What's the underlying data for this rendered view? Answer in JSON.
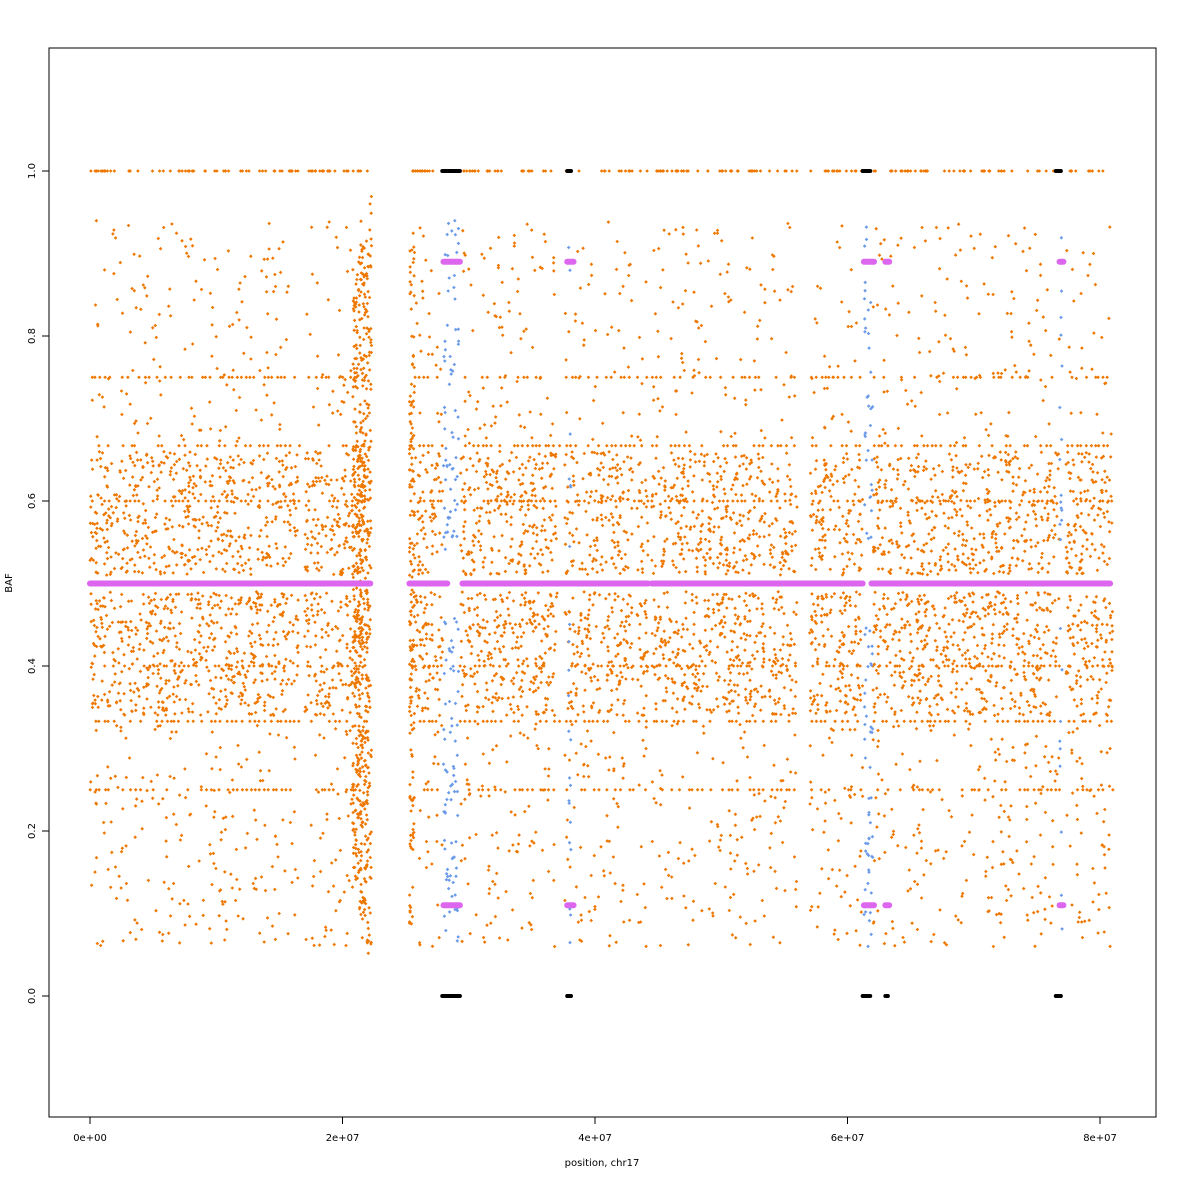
{
  "chart_data": {
    "type": "scatter",
    "title": "",
    "xlabel": "position, chr17",
    "ylabel": "BAF",
    "xlim": [
      -3000000,
      83000000
    ],
    "ylim": [
      -0.15,
      1.15
    ],
    "x_ticks": [
      {
        "value": 0,
        "label": "0e+00"
      },
      {
        "value": 20000000,
        "label": "2e+07"
      },
      {
        "value": 40000000,
        "label": "4e+07"
      },
      {
        "value": 60000000,
        "label": "6e+07"
      },
      {
        "value": 80000000,
        "label": "8e+07"
      }
    ],
    "y_ticks": [
      {
        "value": 0.0,
        "label": "0.0"
      },
      {
        "value": 0.2,
        "label": "0.2"
      },
      {
        "value": 0.4,
        "label": "0.4"
      },
      {
        "value": 0.6,
        "label": "0.6"
      },
      {
        "value": 0.8,
        "label": "0.8"
      },
      {
        "value": 1.0,
        "label": "1.0"
      }
    ],
    "grid": false,
    "legend": "none",
    "colors": {
      "snp_baf": "#ee7700",
      "segment_baf": "#dd66ee",
      "loh_region_baf": "#6a9ae8",
      "homozygous": "#000000"
    },
    "series": [
      {
        "kind": "segment_mean",
        "color_key": "segment_baf",
        "segments": [
          {
            "x0": 0,
            "x1": 22200000,
            "y": 0.5
          },
          {
            "x0": 25300000,
            "x1": 28300000,
            "y": 0.5
          },
          {
            "x0": 29500000,
            "x1": 44200000,
            "y": 0.5
          },
          {
            "x0": 44500000,
            "x1": 61200000,
            "y": 0.5
          },
          {
            "x0": 61900000,
            "x1": 80800000,
            "y": 0.5
          },
          {
            "x0": 28000000,
            "x1": 29300000,
            "y": 0.89
          },
          {
            "x0": 28000000,
            "x1": 29300000,
            "y": 0.11
          },
          {
            "x0": 37800000,
            "x1": 38300000,
            "y": 0.89
          },
          {
            "x0": 37800000,
            "x1": 38300000,
            "y": 0.11
          },
          {
            "x0": 61300000,
            "x1": 62100000,
            "y": 0.89
          },
          {
            "x0": 61300000,
            "x1": 62100000,
            "y": 0.11
          },
          {
            "x0": 63000000,
            "x1": 63300000,
            "y": 0.89
          },
          {
            "x0": 63000000,
            "x1": 63300000,
            "y": 0.11
          },
          {
            "x0": 76800000,
            "x1": 77100000,
            "y": 0.89
          },
          {
            "x0": 76800000,
            "x1": 77100000,
            "y": 0.11
          }
        ]
      },
      {
        "kind": "homozygous",
        "color_key": "homozygous",
        "segments": [
          {
            "x0": 27900000,
            "x1": 29300000,
            "y": 1.0
          },
          {
            "x0": 27900000,
            "x1": 29300000,
            "y": 0.0
          },
          {
            "x0": 37800000,
            "x1": 38100000,
            "y": 1.0
          },
          {
            "x0": 37800000,
            "x1": 38100000,
            "y": 0.0
          },
          {
            "x0": 61200000,
            "x1": 61800000,
            "y": 1.0
          },
          {
            "x0": 61200000,
            "x1": 61800000,
            "y": 0.0
          },
          {
            "x0": 63000000,
            "x1": 63200000,
            "y": 0.0
          },
          {
            "x0": 76500000,
            "x1": 76900000,
            "y": 1.0
          },
          {
            "x0": 76500000,
            "x1": 76900000,
            "y": 0.0
          }
        ]
      }
    ]
  }
}
